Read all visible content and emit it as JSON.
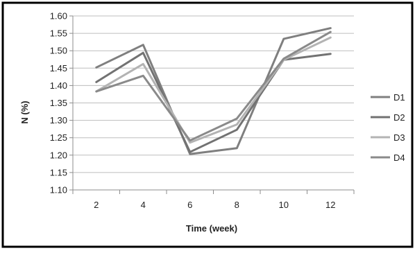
{
  "chart_data": {
    "type": "line",
    "title": "",
    "xlabel": "Time (week)",
    "ylabel": "N (%)",
    "categories": [
      "2",
      "4",
      "6",
      "8",
      "10",
      "12"
    ],
    "ylim": [
      1.1,
      1.6
    ],
    "ytick_labels": [
      "1.10",
      "1.15",
      "1.20",
      "1.25",
      "1.30",
      "1.35",
      "1.40",
      "1.45",
      "1.50",
      "1.55",
      "1.60"
    ],
    "grid": true,
    "legend_position": "right",
    "series": [
      {
        "name": "D1",
        "color": "#7f7f7f",
        "values": [
          1.452,
          1.517,
          1.203,
          1.22,
          1.534,
          1.565
        ]
      },
      {
        "name": "D2",
        "color": "#727272",
        "values": [
          1.41,
          1.494,
          1.209,
          1.273,
          1.474,
          1.491
        ]
      },
      {
        "name": "D3",
        "color": "#b3b3b3",
        "values": [
          1.383,
          1.462,
          1.236,
          1.288,
          1.474,
          1.538
        ]
      },
      {
        "name": "D4",
        "color": "#8a8a8a",
        "values": [
          1.383,
          1.428,
          1.242,
          1.305,
          1.477,
          1.554
        ]
      }
    ]
  }
}
